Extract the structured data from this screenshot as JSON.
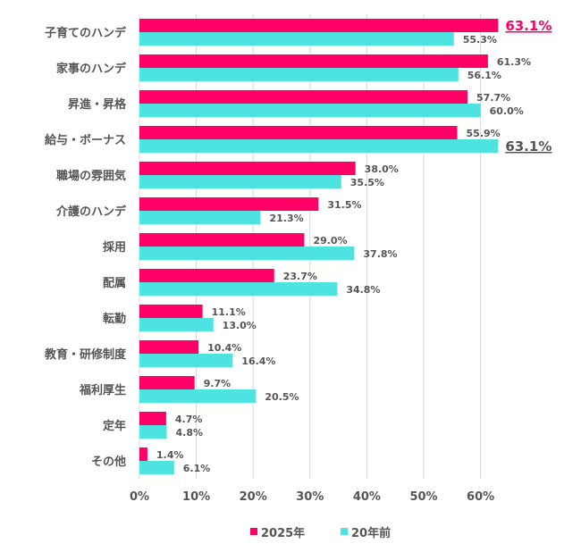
{
  "chart_data": {
    "type": "bar",
    "orientation": "horizontal",
    "categories": [
      "子育てのハンデ",
      "家事のハンデ",
      "昇進・昇格",
      "給与・ボーナス",
      "職場の雰囲気",
      "介護のハンデ",
      "採用",
      "配属",
      "転勤",
      "教育・研修制度",
      "福利厚生",
      "定年",
      "その他"
    ],
    "series": [
      {
        "name": "2025年",
        "color": "#ff0066",
        "values": [
          63.1,
          61.3,
          57.7,
          55.9,
          38.0,
          31.5,
          29.0,
          23.7,
          11.1,
          10.4,
          9.7,
          4.7,
          1.4
        ],
        "highlight_index": 0
      },
      {
        "name": "20年前",
        "color": "#4de3e0",
        "values": [
          55.3,
          56.1,
          60.0,
          63.1,
          35.5,
          21.3,
          37.8,
          34.8,
          13.0,
          16.4,
          20.5,
          4.8,
          6.1
        ],
        "highlight_index": 3
      }
    ],
    "xticks": [
      "0%",
      "10%",
      "20%",
      "30%",
      "40%",
      "50%",
      "60%"
    ],
    "xlim": [
      0,
      70
    ],
    "grid": true,
    "legend": "bottom",
    "label_color": "#555555"
  }
}
